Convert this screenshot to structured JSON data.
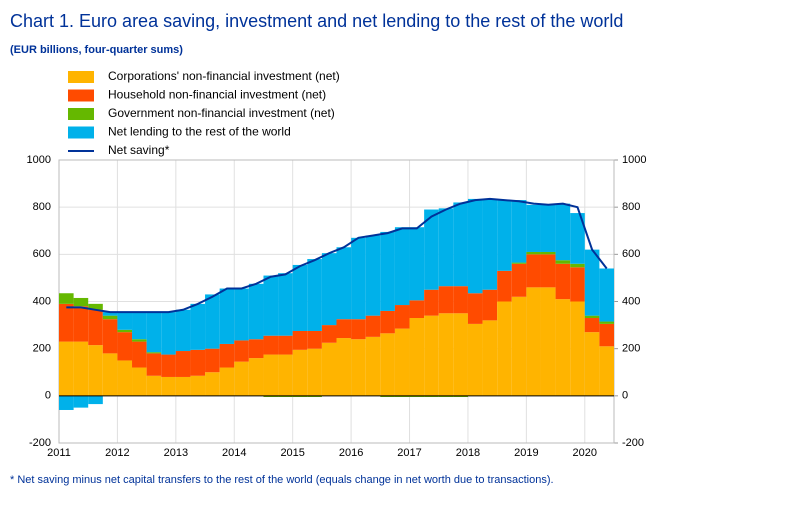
{
  "chart_data": {
    "type": "bar",
    "stacked": true,
    "title": "Chart 1. Euro area saving, investment and net lending to the rest of the world",
    "subtitle": "(EUR billions, four-quarter sums)",
    "footnote": "* Net saving minus net capital transfers to the rest of the world (equals change in net worth due to transactions).",
    "categories": [
      "2011",
      null,
      null,
      null,
      "2012",
      null,
      null,
      null,
      "2013",
      null,
      null,
      null,
      "2014",
      null,
      null,
      null,
      "2015",
      null,
      null,
      null,
      "2016",
      null,
      null,
      null,
      "2017",
      null,
      null,
      null,
      "2018",
      null,
      null,
      null,
      "2019",
      null,
      null,
      null,
      "2020",
      null
    ],
    "series": [
      {
        "name": "Corporations' non-financial investment (net)",
        "color": "#ffb400",
        "values": [
          230,
          230,
          215,
          180,
          150,
          120,
          85,
          80,
          80,
          85,
          100,
          120,
          145,
          160,
          175,
          175,
          195,
          200,
          225,
          245,
          240,
          250,
          265,
          285,
          330,
          340,
          350,
          350,
          305,
          320,
          400,
          420,
          460,
          460,
          410,
          400,
          270,
          210
        ]
      },
      {
        "name": "Household non-financial investment (net)",
        "color": "#ff4b00",
        "values": [
          160,
          150,
          150,
          145,
          120,
          110,
          95,
          95,
          110,
          110,
          100,
          100,
          90,
          80,
          80,
          80,
          80,
          75,
          75,
          80,
          85,
          90,
          95,
          100,
          75,
          110,
          115,
          115,
          130,
          130,
          130,
          140,
          140,
          140,
          150,
          145,
          60,
          95
        ]
      },
      {
        "name": "Government non-financial investment (net)",
        "color": "#65b800",
        "values": [
          45,
          35,
          25,
          15,
          10,
          10,
          5,
          0,
          0,
          0,
          0,
          0,
          0,
          0,
          -5,
          -5,
          -5,
          -5,
          0,
          0,
          0,
          0,
          -5,
          -5,
          -5,
          -5,
          -5,
          -5,
          0,
          0,
          0,
          5,
          10,
          10,
          15,
          15,
          10,
          10
        ]
      },
      {
        "name": "Net lending to the rest of the world",
        "color": "#00b1ea",
        "values": [
          -60,
          -50,
          -35,
          15,
          75,
          115,
          170,
          180,
          175,
          195,
          230,
          235,
          220,
          235,
          255,
          265,
          280,
          305,
          305,
          305,
          345,
          340,
          335,
          330,
          310,
          340,
          330,
          355,
          400,
          385,
          300,
          265,
          200,
          200,
          240,
          215,
          280,
          225
        ]
      },
      {
        "name": "Net saving*",
        "color": "#003299",
        "type": "line",
        "values": [
          375,
          375,
          365,
          355,
          355,
          355,
          355,
          355,
          365,
          390,
          420,
          455,
          455,
          475,
          505,
          515,
          550,
          575,
          605,
          630,
          670,
          680,
          690,
          710,
          710,
          760,
          790,
          815,
          830,
          835,
          830,
          825,
          815,
          810,
          815,
          800,
          620,
          540
        ]
      }
    ],
    "ylim": [
      -200,
      1000
    ],
    "yticks": [
      -200,
      0,
      200,
      400,
      600,
      800,
      1000
    ],
    "y2lim": [
      -200,
      1000
    ],
    "y2ticks": [
      -200,
      0,
      200,
      400,
      600,
      800,
      1000
    ],
    "grid": true,
    "legend": "top-left"
  }
}
